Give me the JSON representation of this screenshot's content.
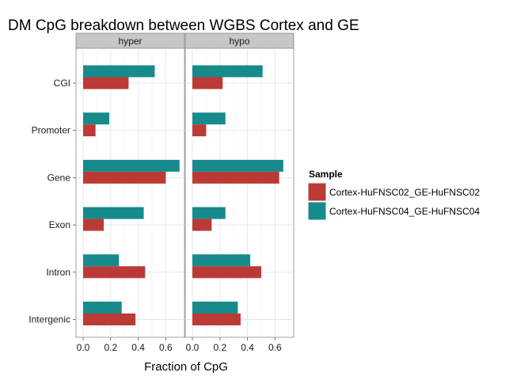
{
  "chart_data": {
    "type": "bar",
    "orientation": "horizontal",
    "title": "DM CpG breakdown between WGBS Cortex and GE",
    "xlabel": "Fraction of CpG",
    "ylabel": "",
    "xlim": [
      0,
      0.75
    ],
    "x_ticks": [
      "0.0",
      "0.2",
      "0.4",
      "0.6"
    ],
    "x_tick_values": [
      0.0,
      0.2,
      0.4,
      0.6
    ],
    "categories": [
      "CGI",
      "Promoter",
      "Gene",
      "Exon",
      "Intron",
      "Intergenic"
    ],
    "grid": true,
    "legend": {
      "title": "Sample",
      "position": "right"
    },
    "series": [
      {
        "name": "Cortex-HuFNSC02_GE-HuFNSC02",
        "color": "#BC3A36"
      },
      {
        "name": "Cortex-HuFNSC04_GE-HuFNSC04",
        "color": "#178A8C"
      }
    ],
    "panels": [
      {
        "label": "hyper",
        "values": [
          [
            0.33,
            0.09,
            0.6,
            0.15,
            0.45,
            0.38
          ],
          [
            0.52,
            0.19,
            0.7,
            0.44,
            0.26,
            0.28
          ]
        ]
      },
      {
        "label": "hypo",
        "values": [
          [
            0.22,
            0.1,
            0.63,
            0.14,
            0.5,
            0.35
          ],
          [
            0.51,
            0.24,
            0.66,
            0.24,
            0.42,
            0.33
          ]
        ]
      }
    ]
  }
}
